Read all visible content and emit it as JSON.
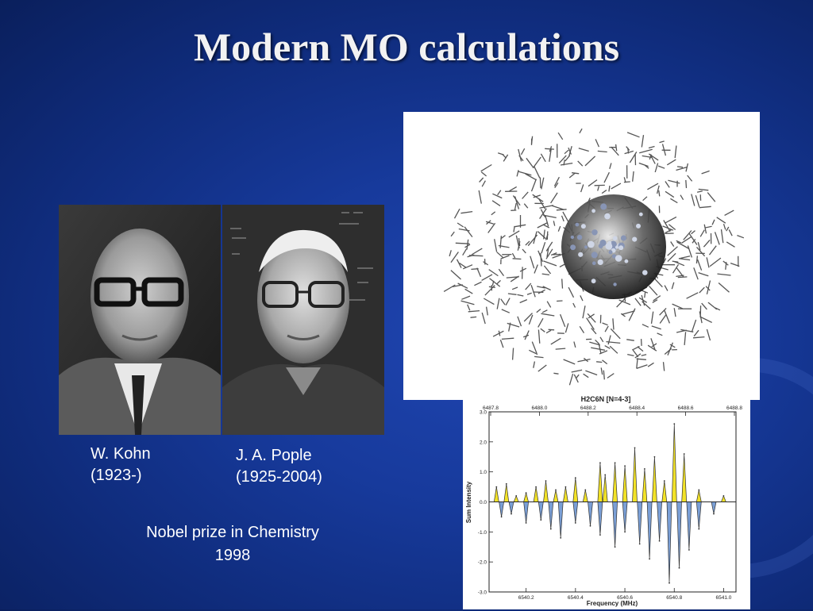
{
  "title": "Modern MO calculations",
  "people": [
    {
      "name": "W. Kohn",
      "years": "(1923-)"
    },
    {
      "name": "J. A. Pople",
      "years": "(1925-2004)"
    }
  ],
  "award": {
    "line1": "Nobel prize in Chemistry",
    "line2": "1998"
  },
  "molecule_figure": {
    "type": "molecular structure render"
  },
  "chart_data": {
    "type": "area",
    "title": "H2C6N   [N=4-3]",
    "xlabel": "Frequency (MHz)",
    "ylabel": "Sum Intensity",
    "x_ticks_bottom": [
      "6540.2",
      "6540.4",
      "6540.6",
      "6540.8",
      "6541.0"
    ],
    "x_ticks_top": [
      "6487.8",
      "6488.0",
      "6488.2",
      "6488.4",
      "6488.6",
      "6488.8"
    ],
    "y_ticks": [
      "3.0",
      "2.0",
      "1.0",
      "0.0",
      "-1.0",
      "-2.0",
      "-3.0"
    ],
    "ylim": [
      -3.0,
      3.0
    ],
    "xlim": [
      6540.05,
      6541.05
    ],
    "series": [
      {
        "color": "#f2e227",
        "x": [
          6540.08,
          6540.12,
          6540.16,
          6540.2,
          6540.24,
          6540.28,
          6540.32,
          6540.36,
          6540.4,
          6540.44,
          6540.5,
          6540.52,
          6540.56,
          6540.6,
          6540.64,
          6540.68,
          6540.72,
          6540.76,
          6540.8,
          6540.84,
          6540.9,
          6541.0
        ],
        "values": [
          0.5,
          0.6,
          0.2,
          0.3,
          0.5,
          0.7,
          0.4,
          0.5,
          0.8,
          0.4,
          1.3,
          0.9,
          1.3,
          1.2,
          1.8,
          1.1,
          1.5,
          0.7,
          2.6,
          1.6,
          0.4,
          0.2
        ]
      },
      {
        "color": "#7a9fd6",
        "x": [
          6540.1,
          6540.14,
          6540.2,
          6540.26,
          6540.3,
          6540.34,
          6540.4,
          6540.46,
          6540.5,
          6540.56,
          6540.6,
          6540.66,
          6540.7,
          6540.74,
          6540.78,
          6540.82,
          6540.86,
          6540.9,
          6540.96
        ],
        "values": [
          -0.5,
          -0.4,
          -0.7,
          -0.6,
          -0.9,
          -1.2,
          -0.7,
          -0.8,
          -1.1,
          -1.5,
          -1.0,
          -1.4,
          -1.9,
          -1.3,
          -2.7,
          -2.2,
          -1.6,
          -0.9,
          -0.4
        ]
      }
    ]
  }
}
